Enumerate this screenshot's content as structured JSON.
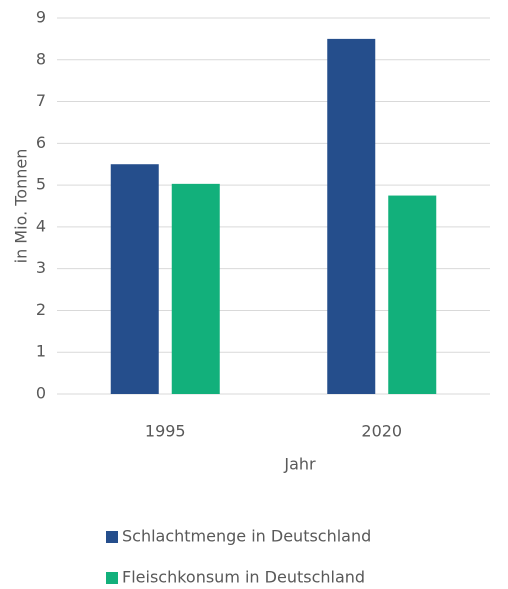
{
  "chart_data": {
    "type": "bar",
    "x_label": "Jahr",
    "y_label": "in Mio. Tonnen",
    "categories": [
      "1995",
      "2020"
    ],
    "series": [
      {
        "name": "Schlachtmenge in Deutschland",
        "color": "#254e8c",
        "values": [
          5.5,
          8.5
        ]
      },
      {
        "name": "Fleischkonsum in Deutschland",
        "color": "#12b07b",
        "values": [
          5.03,
          4.75
        ]
      }
    ],
    "ylim": [
      0,
      9
    ],
    "yticks": [
      0,
      1,
      2,
      3,
      4,
      5,
      6,
      7,
      8,
      9
    ],
    "grid": true,
    "legend": "bottom"
  }
}
